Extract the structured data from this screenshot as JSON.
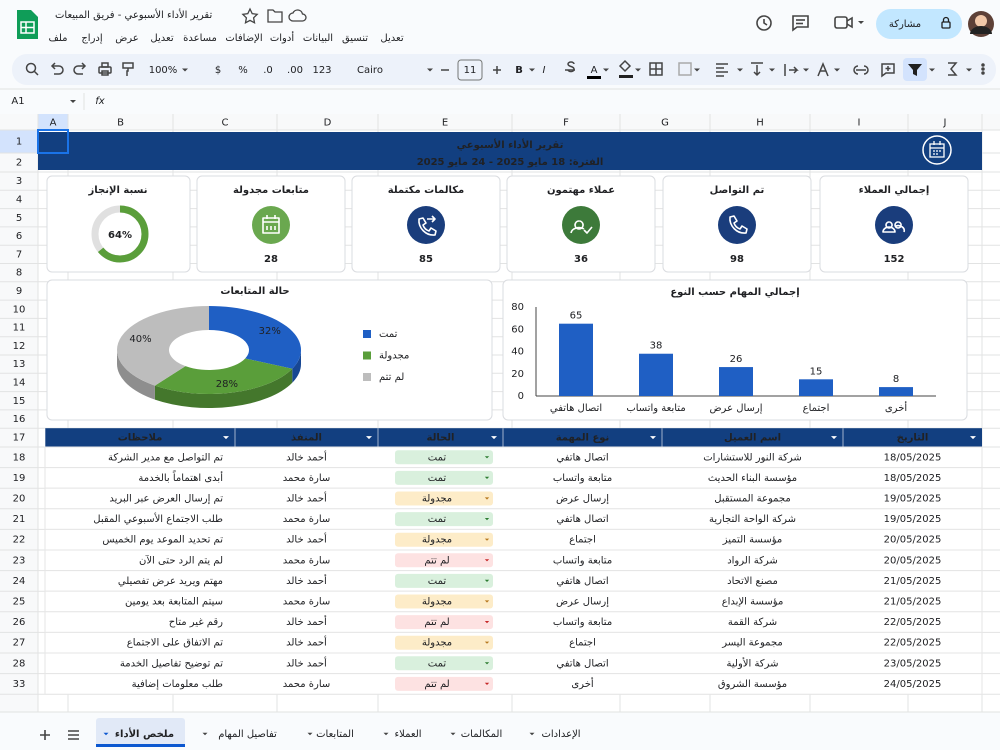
{
  "app": {
    "doc_title": "تقرير الأداء الأسبوعي - فريق المبيعات",
    "menus": [
      "ملف",
      "إدراج",
      "عرض",
      "تعديل",
      "مساعدة",
      "الإضافات",
      "أدوات",
      "البيانات",
      "تنسيق",
      "تعديل"
    ],
    "share": "مشاركة",
    "zoom": "100%",
    "currency": "$",
    "percent": "%",
    "dec_less": ".0",
    "dec_more": ".00",
    "number_format": "123",
    "font": "Cairo",
    "font_size": "11",
    "bold": "B",
    "italic": "I",
    "text_color": "A",
    "cell_ref": "A1",
    "fx": "fx"
  },
  "grid": {
    "columns": [
      "A",
      "B",
      "C",
      "D",
      "E",
      "F",
      "G",
      "H",
      "I",
      "J"
    ],
    "rows": [
      1,
      2,
      3,
      4,
      5,
      6,
      7,
      8,
      9,
      10,
      11,
      12,
      13,
      14,
      15,
      16,
      17,
      18,
      19,
      20,
      21,
      22,
      23,
      24,
      25,
      26,
      27,
      28,
      33
    ]
  },
  "dashboard": {
    "title": "تقرير الأداء الأسبوعي",
    "period": "الفترة: 18 مايو 2025 - 24 مايو 2025",
    "kpis": [
      {
        "label": "إجمالي العملاء",
        "value": 152,
        "color": "#1a3d7c"
      },
      {
        "label": "تم التواصل",
        "value": 98,
        "color": "#1a3d7c"
      },
      {
        "label": "عملاء مهتمون",
        "value": 36,
        "color": "#3d7a3a"
      },
      {
        "label": "مكالمات مكتملة",
        "value": 85,
        "color": "#1a3d7c"
      },
      {
        "label": "متابعات مجدولة",
        "value": 28,
        "color": "#6aa84f"
      }
    ],
    "gauge": {
      "label": "نسبة الإنجاز",
      "value": 64,
      "value_label": "64%",
      "color": "#5a9e3a"
    }
  },
  "chart_data": [
    {
      "type": "pie",
      "title": "حالة المتابعات",
      "categories": [
        "تمت",
        "مجدولة",
        "لم تتم"
      ],
      "values": [
        32,
        28,
        40
      ],
      "value_labels": [
        "32%",
        "28%",
        "40%"
      ],
      "colors": [
        "#1f5fc4",
        "#5a9e3a",
        "#bdbdbd"
      ],
      "legend": "right"
    },
    {
      "type": "bar",
      "title": "إجمالي المهام حسب النوع",
      "categories": [
        "اتصال هاتفي",
        "متابعة واتساب",
        "إرسال عرض",
        "اجتماع",
        "أخرى"
      ],
      "values": [
        65,
        38,
        26,
        15,
        8
      ],
      "color": "#1f5fc4",
      "ylim": [
        0,
        80
      ],
      "yticks": [
        0,
        20,
        40,
        60,
        80
      ],
      "grid": false
    }
  ],
  "table": {
    "headers": [
      "التاريخ",
      "اسم العميل",
      "نوع المهمة",
      "الحالة",
      "المنفذ",
      "ملاحظات"
    ],
    "status_styles": [
      {
        "bg": "#d9f0dd",
        "fg": "#2e7d32"
      },
      {
        "bg": "#fdecc8",
        "fg": "#b7791f"
      },
      {
        "bg": "#fde2e2",
        "fg": "#c62828"
      }
    ],
    "rows": [
      [
        "18/05/2025",
        "شركة النور للاستشارات",
        "اتصال هاتفي",
        "تمت",
        "أحمد خالد",
        "تم التواصل مع مدير الشركة"
      ],
      [
        "18/05/2025",
        "مؤسسة البناء الحديث",
        "متابعة واتساب",
        "تمت",
        "سارة محمد",
        "أبدى اهتماماً بالخدمة"
      ],
      [
        "19/05/2025",
        "مجموعة المستقبل",
        "إرسال عرض",
        "مجدولة",
        "أحمد خالد",
        "تم إرسال العرض عبر البريد"
      ],
      [
        "19/05/2025",
        "شركة الواحة التجارية",
        "اتصال هاتفي",
        "تمت",
        "سارة محمد",
        "طلب الاجتماع الأسبوعي المقبل"
      ],
      [
        "20/05/2025",
        "مؤسسة التميز",
        "اجتماع",
        "مجدولة",
        "أحمد خالد",
        "تم تحديد الموعد يوم الخميس"
      ],
      [
        "20/05/2025",
        "شركة الرواد",
        "متابعة واتساب",
        "لم تتم",
        "سارة محمد",
        "لم يتم الرد حتى الآن"
      ],
      [
        "21/05/2025",
        "مصنع الاتحاد",
        "اتصال هاتفي",
        "تمت",
        "أحمد خالد",
        "مهتم ويريد عرض تفصيلي"
      ],
      [
        "21/05/2025",
        "مؤسسة الإبداع",
        "إرسال عرض",
        "مجدولة",
        "سارة محمد",
        "سيتم المتابعة بعد يومين"
      ],
      [
        "22/05/2025",
        "شركة القمة",
        "متابعة واتساب",
        "لم تتم",
        "أحمد خالد",
        "رقم غير متاح"
      ],
      [
        "22/05/2025",
        "مجموعة اليسر",
        "اجتماع",
        "مجدولة",
        "أحمد خالد",
        "تم الاتفاق على الاجتماع"
      ],
      [
        "23/05/2025",
        "شركة الأولية",
        "اتصال هاتفي",
        "تمت",
        "أحمد خالد",
        "تم توضيح تفاصيل الخدمة"
      ],
      [
        "24/05/2025",
        "مؤسسة الشروق",
        "أخرى",
        "لم تتم",
        "سارة محمد",
        "طلب معلومات إضافية"
      ]
    ]
  },
  "tabs": [
    "ملخص الأداء",
    "تفاصيل المهام",
    "المتابعات",
    "العملاء",
    "المكالمات",
    "الإعدادات"
  ],
  "active_tab": 0
}
